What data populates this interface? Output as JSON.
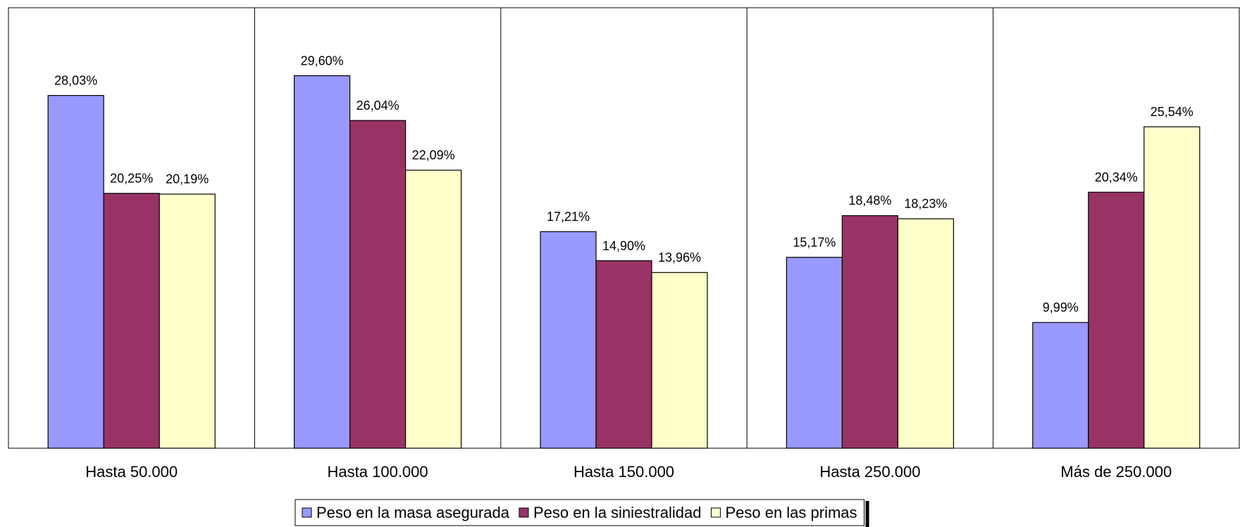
{
  "chart_data": {
    "type": "bar",
    "categories": [
      "Hasta 50.000",
      "Hasta 100.000",
      "Hasta 150.000",
      "Hasta 250.000",
      "Más de 250.000"
    ],
    "series": [
      {
        "name": "Peso en la masa asegurada",
        "color": "#9999ff",
        "values": [
          28.03,
          29.6,
          17.21,
          15.17,
          9.99
        ],
        "value_labels": [
          "28,03%",
          "29,60%",
          "17,21%",
          "15,17%",
          "9,99%"
        ]
      },
      {
        "name": "Peso en la siniestralidad",
        "color": "#993366",
        "values": [
          20.25,
          26.04,
          14.9,
          18.48,
          20.34
        ],
        "value_labels": [
          "20,25%",
          "26,04%",
          "14,90%",
          "18,48%",
          "20,34%"
        ]
      },
      {
        "name": "Peso en las primas",
        "color": "#ffffcc",
        "values": [
          20.19,
          22.09,
          13.96,
          18.23,
          25.54
        ],
        "value_labels": [
          "20,19%",
          "22,09%",
          "13,96%",
          "18,23%",
          "25,54%"
        ]
      }
    ],
    "ylim": [
      0,
      35
    ],
    "legend": "bottom"
  }
}
